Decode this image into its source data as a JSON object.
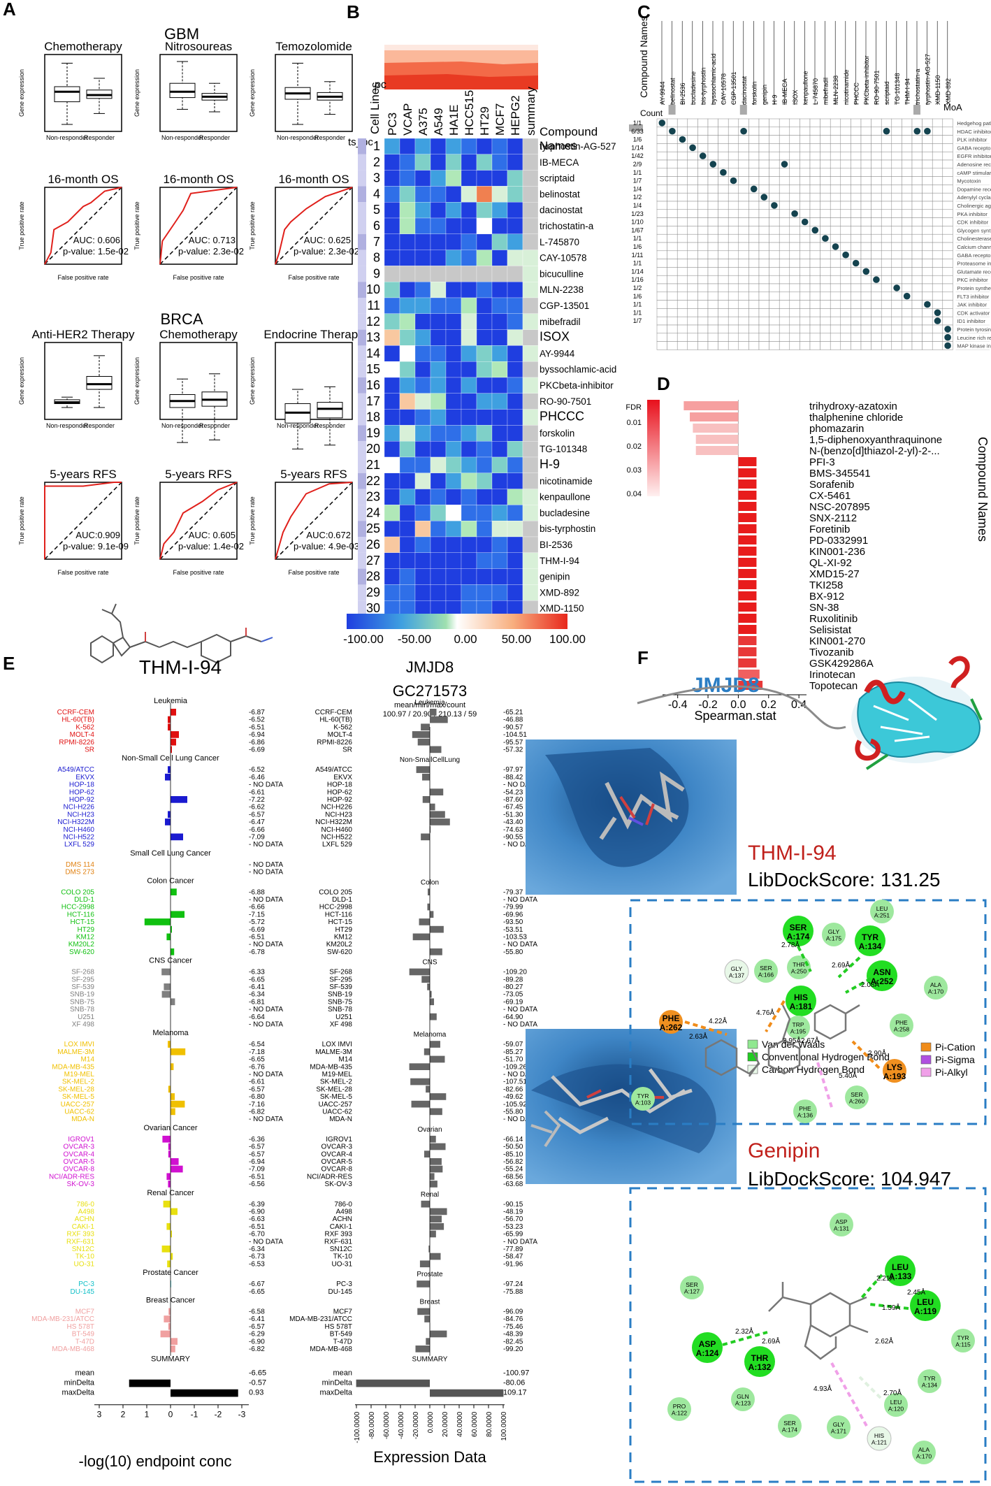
{
  "panel_letters": [
    "A",
    "B",
    "C",
    "D",
    "E",
    "F"
  ],
  "panelA": {
    "gbm_title": "GBM",
    "brca_title": "BRCA",
    "box_titles": [
      "Chemotherapy",
      "Nitrosoureas",
      "Temozolomide",
      "Anti-HER2 Therapy",
      "Chemotherapy",
      "Endocrine Therapy"
    ],
    "box_ylabel": "Gene expression",
    "box_xticks": [
      "Non-responder",
      "Responder"
    ],
    "roc_titles": [
      "16-month OS",
      "16-month OS",
      "16-month OS",
      "5-years RFS",
      "5-years RFS",
      "5-years RFS"
    ],
    "roc_xlabel": "False positive rate",
    "roc_ylabel": "True positive rate",
    "roc_auc": [
      "AUC: 0.606",
      "AUC: 0.713",
      "AUC: 0.625",
      "AUC:0.909",
      "AUC: 0.605",
      "AUC:0.672"
    ],
    "roc_p": [
      "p-value: 1.5e-02",
      "p-value: 2.3e-02",
      "p-value: 2.3e-02",
      "p-value: 9.1e-09",
      "p-value: 1.4e-02",
      "p-value: 4.9e-03"
    ]
  },
  "panelB": {
    "header_label": "pc",
    "side_label": "ts_pc",
    "cell_lines_label": "Cell Lines",
    "columns": [
      "PC3",
      "VCAP",
      "A375",
      "A549",
      "HA1E",
      "HCC515",
      "HT29",
      "MCF7",
      "HEPG2",
      "summary"
    ],
    "compound_header": "Compound Names",
    "compounds": [
      "tyrphostin-AG-527",
      "IB-MECA",
      "scriptaid",
      "belinostat",
      "dacinostat",
      "trichostatin-a",
      "L-745870",
      "CAY-10578",
      "bicuculline",
      "MLN-2238",
      "CGP-13501",
      "mibefradil",
      "ISOX",
      "AY-9944",
      "byssochlamic-acid",
      "PKCbeta-inhibitor",
      "RO-90-7501",
      "PHCCC",
      "forskolin",
      "TG-101348",
      "H-9",
      "nicotinamide",
      "kenpaullone",
      "bucladesine",
      "bis-tyrphostin",
      "BI-2536",
      "THM-I-94",
      "genipin",
      "XMD-892",
      "XMD-1150"
    ],
    "colorbar_ticks": [
      "-100.00",
      "-50.00",
      "0.00",
      "50.00",
      "100.00"
    ]
  },
  "panelC": {
    "compound_names_label": "Compound Names",
    "count_label": "Count",
    "moa_label": "MoA",
    "compounds": [
      "AY-9944",
      "belinostat",
      "BI-2536",
      "bucladesine",
      "bis-tyrphostin",
      "byssochlamic-acid",
      "CAY-10578",
      "CGP-13501",
      "dacinostat",
      "forskolin",
      "genipin",
      "H-9",
      "IB-MECA",
      "ISOX",
      "kenpaullone",
      "L-745870",
      "mibefradil",
      "MLN-2238",
      "nicotinamide",
      "PHCCC",
      "PKCbeta-inhibitor",
      "RO-90-7501",
      "scriptaid",
      "TG-101348",
      "THM-I-94",
      "trichostatin-a",
      "tyrphostin-AG-527",
      "XMD-1150",
      "XMD-892"
    ],
    "counts": [
      "1/1",
      "6/33",
      "1/6",
      "1/14",
      "1/42",
      "2/9",
      "1/1",
      "1/7",
      "1/4",
      "1/2",
      "1/4",
      "1/23",
      "1/10",
      "1/67",
      "1/1",
      "1/6",
      "1/11",
      "1/1",
      "1/14",
      "1/16",
      "1/2",
      "1/6",
      "1/1",
      "1/1",
      "1/7"
    ],
    "moa": [
      "Hedgehog pathway modulator",
      "HDAC inhibitor",
      "PLK inhibitor",
      "GABA receptor antagonist",
      "EGFR inhibitor",
      "Adenosine receptor agonist",
      "cAMP stimulant",
      "Mycotoxin",
      "Dopamine receptor antagonist",
      "Adenylyl cyclase activator",
      "Cholinergic agent",
      "PKA inhibitor",
      "CDK inhibitor",
      "Glycogen synthase kinase inhibitor",
      "Cholinesterase inhibitor",
      "Calcium channel blocker",
      "GABA receptor modulator",
      "Proteasome inhibitor",
      "Glutamate receptor agonist",
      "PKC inhibitor",
      "Protein synthesis stimulant",
      "FLT3 inhibitor",
      "JAK inhibitor",
      "CDK activator",
      "ID1 inhibitor",
      "Protein tyrosine kinase inhibitor",
      "Leucine rich repeat kinase inhibitor",
      "MAP kinase inhibitor"
    ]
  },
  "panelD": {
    "fdr_label": "FDR",
    "fdr_ticks": [
      "0.01",
      "0.02",
      "0.03",
      "0.04"
    ],
    "xlabel": "Spearman.stat",
    "xticks": [
      "-0.4",
      "-0.2",
      "0.0",
      "0.2",
      "0.4"
    ],
    "ylabel": "Compound Names",
    "compounds": [
      "trihydroxy-azatoxin",
      "thalphenine chloride",
      "phomazarin",
      "1,5-diphenoxyanthraquinone",
      "N-(benzo[d]thiazol-2-yl)-2-...",
      "PFI-3",
      "BMS-345541",
      "Sorafenib",
      "CX-5461",
      "NSC-207895",
      "SNX-2112",
      "Foretinib",
      "PD-0332991",
      "KIN001-236",
      "QL-XI-92",
      "XMD15-27",
      "TKI258",
      "BX-912",
      "SN-38",
      "Ruxolitinib",
      "Selisistat",
      "KIN001-270",
      "Tivozanib",
      "GSK429286A",
      "Irinotecan",
      "Topotecan"
    ]
  },
  "chart_data": {
    "type": "bar",
    "title": "",
    "xlabel": "Spearman.stat",
    "ylabel": "Compound Names",
    "categories": [
      "trihydroxy-azatoxin",
      "thalphenine chloride",
      "phomazarin",
      "1,5-diphenoxyanthraquinone",
      "N-(benzo[d]thiazol-2-yl)-2-...",
      "PFI-3",
      "BMS-345541",
      "Sorafenib",
      "CX-5461",
      "NSC-207895",
      "SNX-2112",
      "Foretinib",
      "PD-0332991",
      "KIN001-236",
      "QL-XI-92",
      "XMD15-27",
      "TKI258",
      "BX-912",
      "SN-38",
      "Ruxolitinib",
      "Selisistat",
      "KIN001-270",
      "Tivozanib",
      "GSK429286A",
      "Irinotecan",
      "Topotecan"
    ],
    "values": [
      -0.36,
      -0.32,
      -0.3,
      -0.28,
      -0.28,
      0.12,
      0.12,
      0.12,
      0.12,
      0.12,
      0.12,
      0.12,
      0.12,
      0.12,
      0.12,
      0.12,
      0.12,
      0.12,
      0.12,
      0.12,
      0.12,
      0.12,
      0.12,
      0.12,
      0.14,
      0.16
    ],
    "xlim": [
      -0.5,
      0.45
    ]
  },
  "panelE": {
    "compound_title": "THM-I-94",
    "target_title": "JMJD8",
    "gc_title": "GC271573",
    "gc_stats_header": "mean/min/max/count",
    "gc_stats": "100.97 / 20.90 / 210.13 / 59",
    "left_xlabel": "-log(10) endpoint conc",
    "right_xlabel": "Expression Data",
    "left_xticks": [
      "3",
      "2",
      "1",
      "0",
      "-1",
      "-2",
      "-3"
    ],
    "right_xticks": [
      "-100.0000",
      "-80.0000",
      "-60.0000",
      "-40.0000",
      "-20.0000",
      "0.0000",
      "20.0000",
      "40.0000",
      "60.0000",
      "80.0000",
      "100.0000"
    ],
    "groups": [
      "Leukemia",
      "Non-Small Cell Lung Cancer",
      "Small Cell Lung Cancer",
      "Colon Cancer",
      "CNS Cancer",
      "Melanoma",
      "Ovarian Cancer",
      "Renal Cancer",
      "Prostate Cancer",
      "Breast Cancer",
      "SUMMARY"
    ],
    "right_groups": [
      "Leukemia",
      "Non-SmallCellLung",
      "Colon",
      "CNS",
      "Melanoma",
      "Ovarian",
      "Renal",
      "Prostate",
      "Breast",
      "SUMMARY"
    ],
    "left_summary_labels": [
      "mean",
      "minDelta",
      "maxDelta"
    ],
    "left_summary_vals": [
      "-6.65",
      "-0.57",
      "0.93"
    ],
    "right_summary_vals": [
      "-100.97",
      "-80.06",
      "109.17"
    ]
  },
  "panelF": {
    "protein_title": "JMJD8",
    "lig1_name": "THM-I-94",
    "lig1_score": "LibDockScore: 131.25",
    "lig2_name": "Genipin",
    "lig2_score": "LibDockScore: 104.947",
    "legend": [
      "Van der Waals",
      "Conventional Hydrogen Bond",
      "Carbon Hydrogen Bond",
      "Pi-Cation",
      "Pi-Sigma",
      "Pi-Alkyl"
    ]
  },
  "colors": {
    "roc": "#e0201b",
    "heat_low": "#1f3ee0",
    "heat_mid": "#ffffff",
    "heat_high": "#e8281c",
    "dock_box": "#2a7dc4",
    "surface": "#3f86c6",
    "residue_green": "#7ee07e",
    "hbond": "#22cc22",
    "pication": "#f08c1a",
    "pisigma": "#b050e0",
    "pialkyl": "#f0a0e8",
    "red_title": "#c0201b"
  }
}
